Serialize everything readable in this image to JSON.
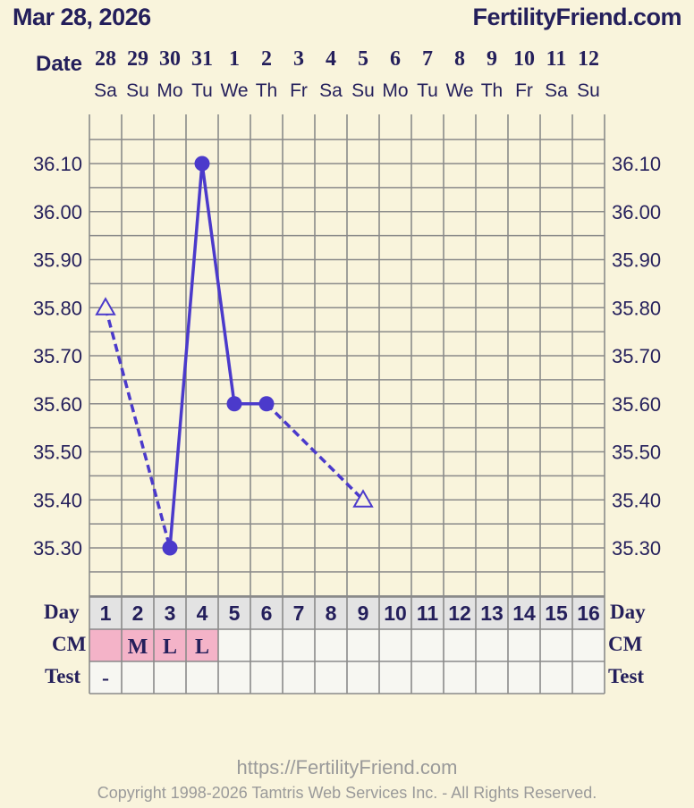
{
  "header": {
    "date": "Mar 28, 2026",
    "site": "FertilityFriend.com"
  },
  "labels": {
    "date": "Date",
    "day": "Day",
    "cm": "CM",
    "test": "Test"
  },
  "chart_data": {
    "type": "line",
    "title": "",
    "xlabel": "Date",
    "ylabel": "",
    "dates": [
      "28",
      "29",
      "30",
      "31",
      "1",
      "2",
      "3",
      "4",
      "5",
      "6",
      "7",
      "8",
      "9",
      "10",
      "11",
      "12"
    ],
    "weekdays": [
      "Sa",
      "Su",
      "Mo",
      "Tu",
      "We",
      "Th",
      "Fr",
      "Sa",
      "Su",
      "Mo",
      "Tu",
      "We",
      "Th",
      "Fr",
      "Sa",
      "Su"
    ],
    "cycle_days": [
      "1",
      "2",
      "3",
      "4",
      "5",
      "6",
      "7",
      "8",
      "9",
      "10",
      "11",
      "12",
      "13",
      "14",
      "15",
      "16"
    ],
    "y_ticks": [
      "36.10",
      "36.00",
      "35.90",
      "35.80",
      "35.70",
      "35.60",
      "35.50",
      "35.40",
      "35.30"
    ],
    "ylim": [
      35.22,
      36.18
    ],
    "grid": true,
    "series": [
      {
        "points": [
          {
            "day": 1,
            "temp": 35.8,
            "marker": "open-triangle"
          },
          {
            "day": 3,
            "temp": 35.3,
            "marker": "filled-circle"
          },
          {
            "day": 4,
            "temp": 36.1,
            "marker": "filled-circle"
          },
          {
            "day": 5,
            "temp": 35.6,
            "marker": "filled-circle"
          },
          {
            "day": 6,
            "temp": 35.6,
            "marker": "filled-circle"
          },
          {
            "day": 9,
            "temp": 35.4,
            "marker": "open-triangle"
          }
        ]
      }
    ],
    "cm": [
      "",
      "M",
      "L",
      "L",
      "",
      "",
      "",
      "",
      "",
      "",
      "",
      "",
      "",
      "",
      "",
      ""
    ],
    "cm_highlight": [
      true,
      true,
      true,
      true,
      false,
      false,
      false,
      false,
      false,
      false,
      false,
      false,
      false,
      false,
      false,
      false
    ],
    "test": [
      "-",
      "",
      "",
      "",
      "",
      "",
      "",
      "",
      "",
      "",
      "",
      "",
      "",
      "",
      "",
      ""
    ],
    "colors": {
      "line": "#4b3acb",
      "grid": "#8a8a8a",
      "cm_fill": "#f4b3c8",
      "day_row": "#e3e3e3",
      "cell": "#f7f7f2"
    }
  },
  "footer": {
    "url": "https://FertilityFriend.com",
    "copyright": "Copyright 1998-2026 Tamtris Web Services Inc. - All Rights Reserved."
  }
}
